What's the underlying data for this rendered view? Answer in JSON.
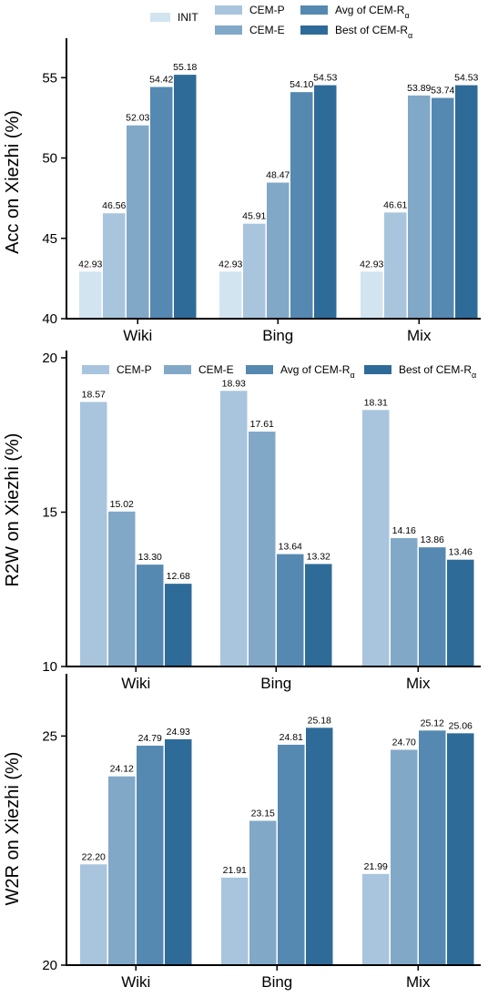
{
  "colors": {
    "INIT": "#d3e4f1",
    "CEM-P": "#a9c5dd",
    "CEM-E": "#82a8c8",
    "Avg of CEM-Rα": "#5589b1",
    "Best of CEM-Rα": "#2e6b98"
  },
  "chart_data": [
    {
      "type": "bar",
      "ylabel": "Acc on Xiezhi (%)",
      "ylim": [
        40,
        57
      ],
      "yticks": [
        40,
        45,
        50,
        55
      ],
      "categories": [
        "Wiki",
        "Bing",
        "Mix"
      ],
      "legend_position": "top",
      "series": [
        {
          "name": "INIT",
          "values": [
            42.93,
            42.93,
            42.93
          ],
          "labels": [
            "42.93",
            "42.93",
            "42.93"
          ]
        },
        {
          "name": "CEM-P",
          "values": [
            46.56,
            45.91,
            46.61
          ],
          "labels": [
            "46.56",
            "45.91",
            "46.61"
          ]
        },
        {
          "name": "CEM-E",
          "values": [
            52.03,
            48.47,
            53.89
          ],
          "labels": [
            "52.03",
            "48.47",
            "53.89"
          ]
        },
        {
          "name": "Avg of CEM-Rα",
          "values": [
            54.42,
            54.1,
            53.74
          ],
          "labels": [
            "54.42",
            "54.10",
            "53.74"
          ]
        },
        {
          "name": "Best of CEM-Rα",
          "values": [
            55.18,
            54.53,
            54.53
          ],
          "labels": [
            "55.18",
            "54.53",
            "54.53"
          ]
        }
      ]
    },
    {
      "type": "bar",
      "ylabel": "R2W on Xiezhi (%)",
      "ylim": [
        10,
        20
      ],
      "yticks": [
        10,
        15,
        20
      ],
      "categories": [
        "Wiki",
        "Bing",
        "Mix"
      ],
      "legend_position": "top",
      "series": [
        {
          "name": "CEM-P",
          "values": [
            18.57,
            18.93,
            18.31
          ],
          "labels": [
            "18.57",
            "18.93",
            "18.31"
          ]
        },
        {
          "name": "CEM-E",
          "values": [
            15.02,
            17.61,
            14.16
          ],
          "labels": [
            "15.02",
            "17.61",
            "14.16"
          ]
        },
        {
          "name": "Avg of CEM-Rα",
          "values": [
            13.3,
            13.64,
            13.86
          ],
          "labels": [
            "13.30",
            "13.64",
            "13.86"
          ]
        },
        {
          "name": "Best of CEM-Rα",
          "values": [
            12.68,
            13.32,
            13.46
          ],
          "labels": [
            "12.68",
            "13.32",
            "13.46"
          ]
        }
      ]
    },
    {
      "type": "bar",
      "ylabel": "W2R on Xiezhi (%)",
      "ylim": [
        20,
        26.2
      ],
      "yticks": [
        20,
        25
      ],
      "categories": [
        "Wiki",
        "Bing",
        "Mix"
      ],
      "series": [
        {
          "name": "CEM-P",
          "values": [
            22.2,
            21.91,
            21.99
          ],
          "labels": [
            "22.20",
            "21.91",
            "21.99"
          ]
        },
        {
          "name": "CEM-E",
          "values": [
            24.12,
            23.15,
            24.7
          ],
          "labels": [
            "24.12",
            "23.15",
            "24.70"
          ]
        },
        {
          "name": "Avg of CEM-Rα",
          "values": [
            24.79,
            24.81,
            25.12
          ],
          "labels": [
            "24.79",
            "24.81",
            "25.12"
          ]
        },
        {
          "name": "Best of CEM-Rα",
          "values": [
            24.93,
            25.18,
            25.06
          ],
          "labels": [
            "24.93",
            "25.18",
            "25.06"
          ]
        }
      ]
    }
  ]
}
